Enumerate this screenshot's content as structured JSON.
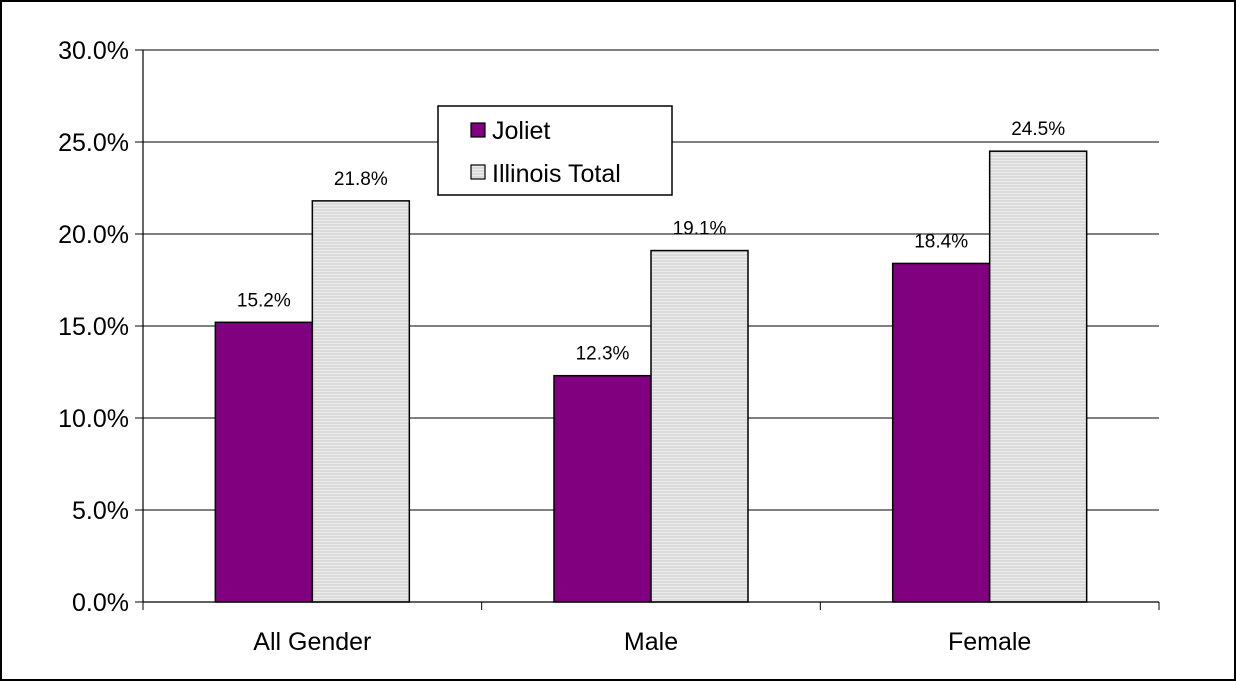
{
  "chart_data": {
    "type": "bar",
    "categories": [
      "All Gender",
      "Male",
      "Female"
    ],
    "series": [
      {
        "name": "Joliet",
        "values": [
          15.2,
          12.3,
          18.4
        ],
        "labels": [
          "15.2%",
          "12.3%",
          "18.4%"
        ],
        "color": "#800080",
        "pattern": "solid"
      },
      {
        "name": "Illinois Total",
        "values": [
          21.8,
          19.1,
          24.5
        ],
        "labels": [
          "21.8%",
          "19.1%",
          "24.5%"
        ],
        "color": "#e8e8e8",
        "pattern": "horizontal-lines"
      }
    ],
    "ylim": [
      0,
      30
    ],
    "yticks": [
      0,
      5,
      10,
      15,
      20,
      25,
      30
    ],
    "ytick_labels": [
      "0.0%",
      "5.0%",
      "10.0%",
      "15.0%",
      "20.0%",
      "25.0%",
      "30.0%"
    ],
    "grid": true,
    "legend_position": "top-center",
    "title": "",
    "xlabel": "",
    "ylabel": ""
  }
}
